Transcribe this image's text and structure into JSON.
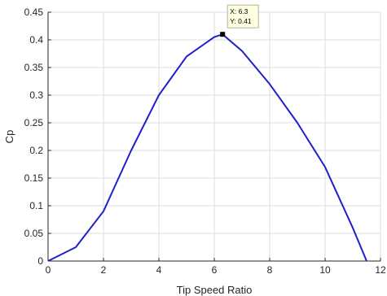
{
  "chart_data": {
    "type": "line",
    "xlabel": "Tip Speed Ratio",
    "ylabel": "Cp",
    "xlim": [
      0,
      12
    ],
    "ylim": [
      0,
      0.45
    ],
    "xticks": [
      0,
      2,
      4,
      6,
      8,
      10,
      12
    ],
    "xtick_labels": [
      "0",
      "2",
      "4",
      "6",
      "8",
      "10",
      "12"
    ],
    "yticks": [
      0,
      0.05,
      0.1,
      0.15,
      0.2,
      0.25,
      0.3,
      0.35,
      0.4,
      0.45
    ],
    "ytick_labels": [
      "0",
      "0.05",
      "0.1",
      "0.15",
      "0.2",
      "0.25",
      "0.3",
      "0.35",
      "0.4",
      "0.45"
    ],
    "grid": true,
    "series": [
      {
        "x": [
          0,
          1,
          2,
          3,
          4,
          5,
          6,
          6.3,
          7,
          8,
          9,
          10,
          11,
          11.5
        ],
        "y": [
          0,
          0.025,
          0.09,
          0.2,
          0.3,
          0.37,
          0.405,
          0.41,
          0.38,
          0.32,
          0.25,
          0.17,
          0.06,
          0
        ],
        "color": "#1f1fcc"
      }
    ],
    "datatip": {
      "x": 6.3,
      "y": 0.41,
      "x_text": "X: 6.3",
      "y_text": "Y: 0.41"
    }
  }
}
